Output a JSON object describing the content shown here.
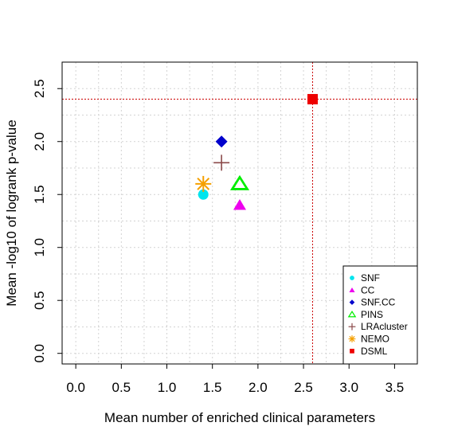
{
  "chart_data": {
    "type": "scatter",
    "title": "",
    "xlabel": "Mean number of enriched clinical parameters",
    "ylabel": "Mean -log10 of logrank p-value",
    "xlim": [
      -0.15,
      3.75
    ],
    "ylim": [
      -0.1,
      2.75
    ],
    "xticks": [
      "0.0",
      "0.5",
      "1.0",
      "1.5",
      "2.0",
      "2.5",
      "3.0",
      "3.5"
    ],
    "yticks": [
      "0.0",
      "0.5",
      "1.0",
      "1.5",
      "2.0",
      "2.5"
    ],
    "grid": true,
    "legend_position": "bottom-right",
    "reference_lines": {
      "x": 2.6,
      "y": 2.4,
      "color": "#cc0000",
      "style": "dotted"
    },
    "series": [
      {
        "name": "SNF",
        "x": 1.4,
        "y": 1.5,
        "color": "#00e5ee",
        "marker": "circle"
      },
      {
        "name": "CC",
        "x": 1.8,
        "y": 1.4,
        "color": "#ee00ee",
        "marker": "filled-triangle"
      },
      {
        "name": "SNF.CC",
        "x": 1.6,
        "y": 2.0,
        "color": "#0000cc",
        "marker": "diamond"
      },
      {
        "name": "PINS",
        "x": 1.8,
        "y": 1.6,
        "color": "#00ee00",
        "marker": "open-triangle"
      },
      {
        "name": "LRAcluster",
        "x": 1.6,
        "y": 1.8,
        "color": "#8b4a4a",
        "marker": "plus"
      },
      {
        "name": "NEMO",
        "x": 1.4,
        "y": 1.6,
        "color": "#f5a000",
        "marker": "asterisk"
      },
      {
        "name": "DSML",
        "x": 2.6,
        "y": 2.4,
        "color": "#ee0000",
        "marker": "square"
      }
    ]
  }
}
